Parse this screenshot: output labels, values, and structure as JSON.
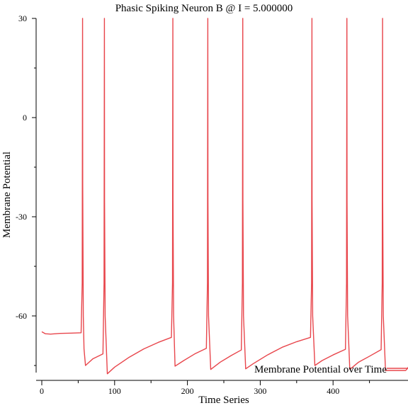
{
  "chart_data": {
    "type": "line",
    "title": "Phasic Spiking Neuron B @ I = 5.000000",
    "xlabel": "Time Series",
    "ylabel": "Membrane Potential",
    "xlim": [
      0,
      500
    ],
    "ylim": [
      -77,
      30
    ],
    "xticks": [
      0,
      100,
      200,
      300,
      400
    ],
    "yticks": [
      30,
      0,
      -30,
      -60
    ],
    "grid": false,
    "legend": {
      "placement": "bottom-right"
    },
    "series": [
      {
        "name": "Membrane Potential over Time",
        "color": "#e8464c",
        "x": [
          0,
          5,
          12,
          25,
          40,
          54,
          55.5,
          56,
          56.2,
          57,
          58,
          60,
          70,
          84,
          85.5,
          86,
          86.2,
          87,
          90,
          100,
          120,
          140,
          160,
          178,
          179.5,
          180,
          180.2,
          181,
          183,
          195,
          210,
          226,
          227.5,
          228,
          228.2,
          229,
          232,
          245,
          260,
          274,
          275.5,
          276,
          276.2,
          277,
          280,
          290,
          310,
          330,
          350,
          369,
          370.5,
          371,
          371.2,
          372,
          375,
          385,
          400,
          417,
          418.5,
          419,
          419.2,
          420,
          423,
          435,
          450,
          466,
          467.5,
          468,
          468.2,
          469,
          472,
          485,
          500
        ],
        "y": [
          -64.8,
          -65.4,
          -65.5,
          -65.3,
          -65.2,
          -65.1,
          -50,
          30,
          -20,
          -60,
          -70,
          -75,
          -73,
          -71.5,
          -50,
          30,
          -25,
          -60,
          -77.5,
          -75.5,
          -72.5,
          -70,
          -68,
          -66.5,
          -50,
          30,
          -25,
          -60,
          -75.2,
          -73.5,
          -71.5,
          -69.8,
          -50,
          30,
          -25,
          -60,
          -76.2,
          -74,
          -72,
          -70.3,
          -50,
          30,
          -25,
          -60,
          -76,
          -74.5,
          -71.8,
          -69.5,
          -67.8,
          -66.5,
          -50,
          30,
          -25,
          -60,
          -75,
          -73.5,
          -71.8,
          -70.1,
          -50,
          30,
          -25,
          -60,
          -76.2,
          -74,
          -72.2,
          -70.2,
          -50,
          30,
          -25,
          -60,
          -76.5,
          -76.5,
          -76.5
        ]
      },
      {
        "name": "",
        "color": "#e8464c",
        "x": [
          500,
          515
        ],
        "y": [
          -76.5,
          -72
        ]
      }
    ]
  }
}
